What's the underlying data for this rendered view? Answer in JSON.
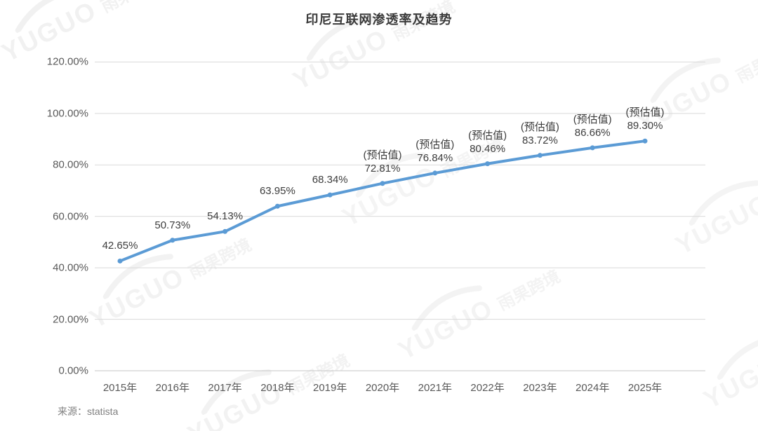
{
  "watermark": {
    "brand": "YUGUO",
    "cn": "雨果跨境"
  },
  "chart_data": {
    "type": "line",
    "title": "印尼互联网渗透率及趋势",
    "source": "来源：statista",
    "categories": [
      "2015年",
      "2016年",
      "2017年",
      "2018年",
      "2019年",
      "2020年",
      "2021年",
      "2022年",
      "2023年",
      "2024年",
      "2025年"
    ],
    "series": [
      {
        "name": "互联网渗透率",
        "values": [
          42.65,
          50.73,
          54.13,
          63.95,
          68.34,
          72.81,
          76.84,
          80.46,
          83.72,
          86.66,
          89.3
        ]
      }
    ],
    "data_labels": [
      "42.65%",
      "50.73%",
      "54.13%",
      "63.95%",
      "68.34%",
      "72.81%",
      "76.84%",
      "80.46%",
      "83.72%",
      "86.66%",
      "89.30%"
    ],
    "estimate_label": "(预估值)",
    "estimate_start_index": 5,
    "y_ticks": [
      "0.00%",
      "20.00%",
      "40.00%",
      "60.00%",
      "80.00%",
      "100.00%",
      "120.00%"
    ],
    "y_tick_values": [
      0,
      20,
      40,
      60,
      80,
      100,
      120
    ],
    "ylim": [
      0,
      120
    ],
    "grid": true,
    "legend": "none",
    "line_color": "#5B9BD5",
    "grid_color": "#D9D9D9"
  }
}
